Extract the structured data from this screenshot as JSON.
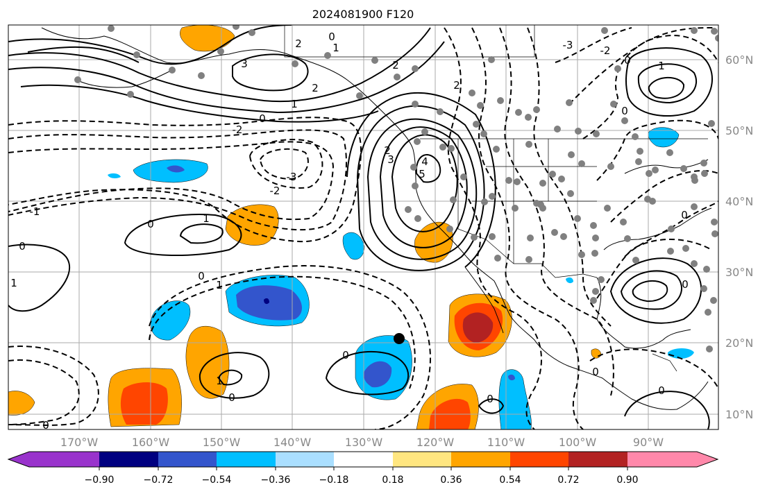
{
  "title": "2024081900 F120",
  "map": {
    "lon_labels": [
      "170°W",
      "160°W",
      "150°W",
      "140°W",
      "130°W",
      "120°W",
      "110°W",
      "100°W",
      "90°W"
    ],
    "lat_labels": [
      "60°N",
      "50°N",
      "40°N",
      "30°N",
      "20°N",
      "10°N"
    ],
    "gridlines": true,
    "station_marker_color": "#808080",
    "contour_color": "#000000",
    "contour_labels": [
      "-3",
      "-2",
      "-1",
      "0",
      "1",
      "2",
      "3",
      "4",
      "5"
    ]
  },
  "colorbar": {
    "ticks": [
      "−0.90",
      "−0.72",
      "−0.54",
      "−0.36",
      "−0.18",
      "0.18",
      "0.36",
      "0.54",
      "0.72",
      "0.90"
    ],
    "colors": [
      "#9933cc",
      "#000080",
      "#3355cc",
      "#00bfff",
      "#aadfff",
      "#ffffff",
      "#ffe680",
      "#ffa500",
      "#ff4500",
      "#b22222",
      "#ff88aa"
    ]
  }
}
